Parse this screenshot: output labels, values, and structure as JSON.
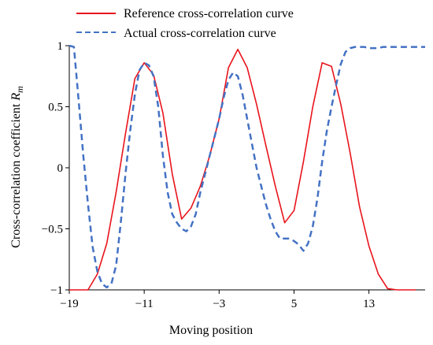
{
  "chart_data": {
    "type": "line",
    "xlabel": "Moving position",
    "ylabel_main": "Cross-correlation coefficient ",
    "ylabel_sub": "R",
    "ylabel_subscript": "m",
    "xlim": [
      -19,
      19
    ],
    "ylim": [
      -1,
      1
    ],
    "x_ticks": [
      -19,
      -11,
      -3,
      5,
      13
    ],
    "x_tick_labels": [
      "−19",
      "−11",
      "−3",
      "5",
      "13"
    ],
    "y_ticks": [
      1,
      0.5,
      0,
      -0.5,
      -1
    ],
    "y_tick_labels": [
      "1",
      "0.5",
      "0",
      "−0.5",
      "−1"
    ],
    "grid": false,
    "legend_position": "top",
    "series": [
      {
        "name": "Reference cross-correlation curve",
        "color": "#e8141c",
        "style": "solid",
        "x": [
          -19,
          -18,
          -17,
          -16,
          -15,
          -14,
          -13,
          -12,
          -11,
          -10,
          -9,
          -8,
          -7,
          -6,
          -5,
          -4,
          -3,
          -2,
          -1,
          0,
          1,
          2,
          3,
          4,
          5,
          6,
          7,
          8,
          9,
          10,
          11,
          12,
          13,
          14,
          15,
          16,
          17,
          18
        ],
        "y": [
          -1,
          -1,
          -1,
          -0.87,
          -0.62,
          -0.2,
          0.28,
          0.73,
          0.86,
          0.76,
          0.45,
          -0.05,
          -0.42,
          -0.33,
          -0.15,
          0.1,
          0.4,
          0.82,
          0.97,
          0.82,
          0.52,
          0.18,
          -0.15,
          -0.45,
          -0.35,
          0.05,
          0.5,
          0.86,
          0.83,
          0.52,
          0.12,
          -0.32,
          -0.64,
          -0.87,
          -0.99,
          -1,
          -1,
          -1
        ]
      },
      {
        "name": "Actual cross-correlation curve",
        "color": "#4472c4",
        "style": "dashed",
        "x": [
          -19,
          -18.5,
          -18,
          -17.5,
          -17,
          -16.5,
          -16,
          -15.5,
          -15,
          -14.5,
          -14,
          -13.5,
          -13,
          -12.5,
          -12,
          -11.5,
          -11,
          -10.5,
          -10,
          -9.5,
          -9,
          -8.5,
          -8,
          -7.5,
          -7,
          -6.5,
          -6,
          -5.5,
          -5,
          -4.5,
          -4,
          -3.5,
          -3,
          -2.5,
          -2,
          -1.5,
          -1,
          -0.5,
          0,
          0.5,
          1,
          1.5,
          2,
          2.5,
          3,
          3.5,
          4,
          4.5,
          5,
          5.5,
          6,
          6.5,
          7,
          7.5,
          8,
          8.5,
          9,
          9.5,
          10,
          10.5,
          11,
          11.5,
          12,
          12.5,
          13,
          13.5,
          14,
          14.5,
          15,
          15.5,
          16,
          16.5,
          17,
          17.5,
          18,
          18.5,
          19
        ],
        "y": [
          1,
          0.99,
          0.55,
          0.1,
          -0.3,
          -0.65,
          -0.85,
          -0.95,
          -0.98,
          -0.95,
          -0.8,
          -0.45,
          -0.05,
          0.3,
          0.6,
          0.8,
          0.86,
          0.84,
          0.75,
          0.5,
          0.1,
          -0.2,
          -0.38,
          -0.45,
          -0.5,
          -0.52,
          -0.48,
          -0.38,
          -0.2,
          -0.05,
          0.1,
          0.25,
          0.4,
          0.58,
          0.72,
          0.78,
          0.75,
          0.6,
          0.4,
          0.2,
          0,
          -0.15,
          -0.3,
          -0.42,
          -0.52,
          -0.58,
          -0.58,
          -0.58,
          -0.6,
          -0.63,
          -0.68,
          -0.62,
          -0.48,
          -0.25,
          0.05,
          0.3,
          0.5,
          0.68,
          0.85,
          0.95,
          0.98,
          0.99,
          0.99,
          0.99,
          0.98,
          0.98,
          0.98,
          0.99,
          0.99,
          0.99,
          0.99,
          0.99,
          0.99,
          0.99,
          0.99,
          0.99,
          0.99
        ]
      }
    ]
  }
}
